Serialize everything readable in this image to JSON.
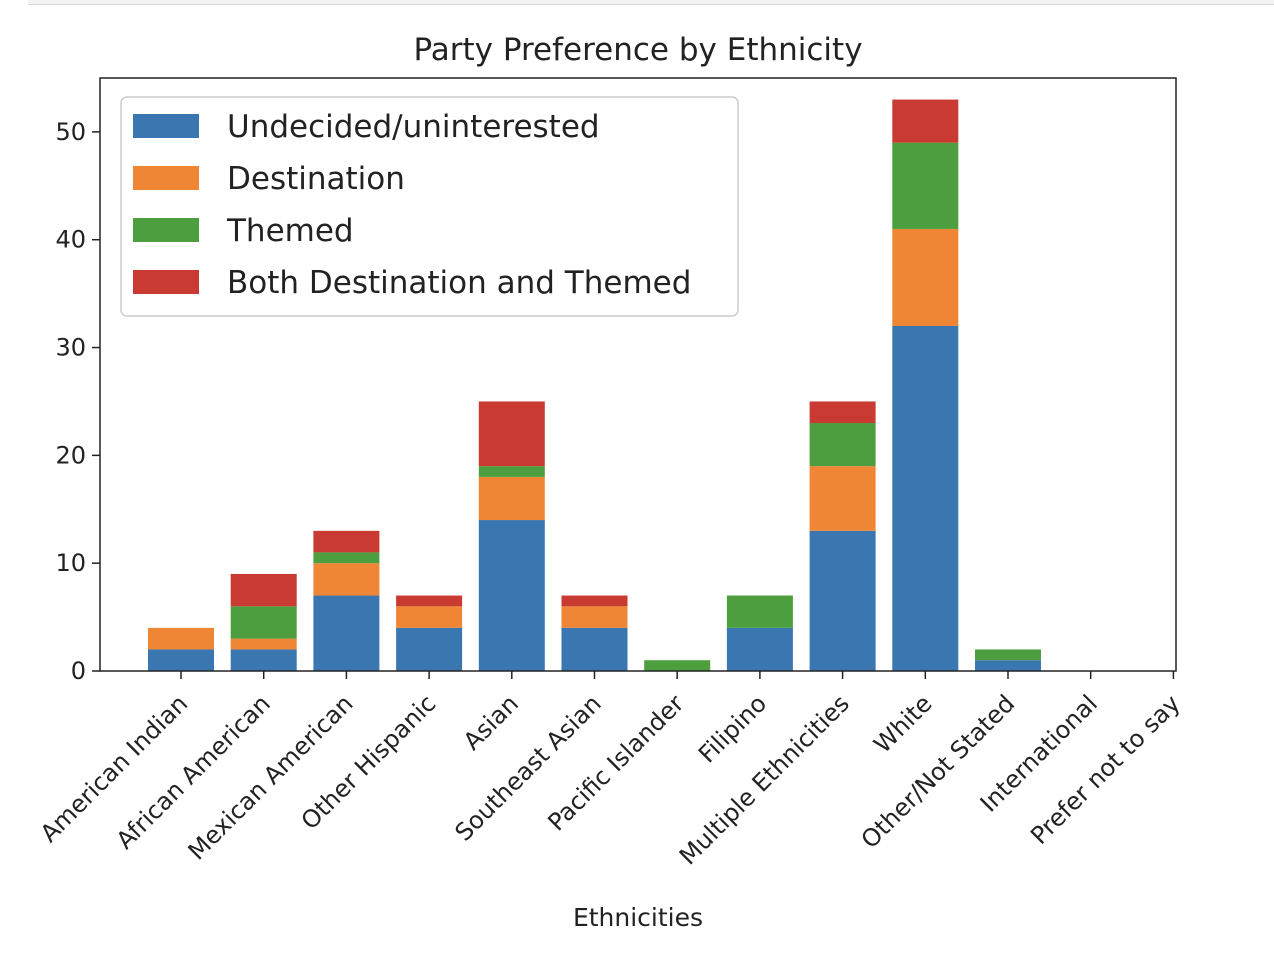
{
  "chart_data": {
    "type": "bar",
    "stacked": true,
    "title": "Party Preference by Ethnicity",
    "xlabel": "Ethnicities",
    "ylabel": "",
    "ylim": [
      0,
      55
    ],
    "yticks": [
      0,
      10,
      20,
      30,
      40,
      50
    ],
    "grid": false,
    "legend_position": "top-left",
    "categories": [
      "American Indian",
      "African American",
      "Mexican American",
      "Other Hispanic",
      "Asian",
      "Southeast Asian",
      "Pacific Islander",
      "Filipino",
      "Multiple Ethnicities",
      "White",
      "Other/Not Stated",
      "International",
      "Prefer not to say"
    ],
    "series": [
      {
        "name": "Undecided/uninterested",
        "color": "#3a76b0",
        "values": [
          2,
          2,
          7,
          4,
          14,
          4,
          0,
          4,
          13,
          32,
          1,
          0,
          0
        ]
      },
      {
        "name": "Destination",
        "color": "#ef8636",
        "values": [
          2,
          1,
          3,
          2,
          4,
          2,
          0,
          0,
          6,
          9,
          0,
          0,
          0
        ]
      },
      {
        "name": "Themed",
        "color": "#4c9e3e",
        "values": [
          0,
          3,
          1,
          0,
          1,
          0,
          1,
          3,
          4,
          8,
          1,
          0,
          0
        ]
      },
      {
        "name": "Both Destination and Themed",
        "color": "#c93a33",
        "values": [
          0,
          3,
          2,
          1,
          6,
          1,
          0,
          0,
          2,
          4,
          0,
          0,
          0
        ]
      }
    ]
  }
}
